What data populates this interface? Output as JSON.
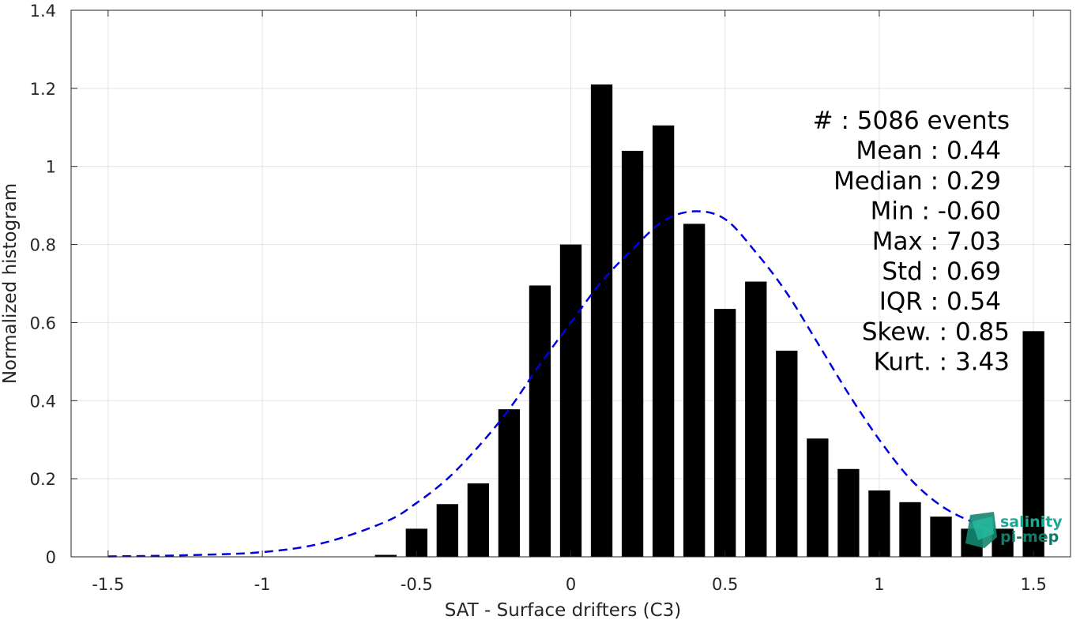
{
  "chart_data": {
    "type": "bar",
    "xlabel": "SAT - Surface drifters (C3)",
    "ylabel": "Normalized histogram",
    "xlim": [
      -1.62,
      1.62
    ],
    "ylim": [
      0,
      1.4
    ],
    "grid": true,
    "xticks": [
      -1.5,
      -1,
      -0.5,
      0,
      0.5,
      1,
      1.5
    ],
    "xtick_labels": [
      "-1.5",
      "-1",
      "-0.5",
      "0",
      "0.5",
      "1",
      "1.5"
    ],
    "yticks": [
      0,
      0.2,
      0.4,
      0.6,
      0.8,
      1,
      1.2,
      1.4
    ],
    "ytick_labels": [
      "0",
      "0.2",
      "0.4",
      "0.6",
      "0.8",
      "1",
      "1.2",
      "1.4"
    ],
    "bar_width": 0.07,
    "bars": {
      "x": [
        -0.6,
        -0.5,
        -0.4,
        -0.3,
        -0.2,
        -0.1,
        0.0,
        0.1,
        0.2,
        0.3,
        0.4,
        0.5,
        0.6,
        0.7,
        0.8,
        0.9,
        1.0,
        1.1,
        1.2,
        1.3,
        1.4,
        1.5
      ],
      "values": [
        0.005,
        0.072,
        0.135,
        0.188,
        0.378,
        0.695,
        0.8,
        1.21,
        1.04,
        1.105,
        0.853,
        0.635,
        0.705,
        0.528,
        0.303,
        0.225,
        0.17,
        0.14,
        0.103,
        0.072,
        0.072,
        0.578
      ],
      "color": "#000000"
    },
    "fit_curve": {
      "style": "dashed",
      "color": "#0000e0",
      "x": [
        -1.5,
        -1.25,
        -1.0,
        -0.8,
        -0.6,
        -0.5,
        -0.4,
        -0.3,
        -0.2,
        -0.1,
        0.0,
        0.1,
        0.2,
        0.3,
        0.4,
        0.5,
        0.6,
        0.7,
        0.8,
        0.9,
        1.0,
        1.1,
        1.2,
        1.3,
        1.36
      ],
      "values": [
        0.001,
        0.004,
        0.012,
        0.036,
        0.09,
        0.138,
        0.2,
        0.282,
        0.378,
        0.493,
        0.6,
        0.705,
        0.788,
        0.86,
        0.885,
        0.865,
        0.78,
        0.676,
        0.548,
        0.418,
        0.3,
        0.2,
        0.131,
        0.09,
        0.078
      ]
    },
    "annotations": [
      "#  : 5086 events",
      "Mean : 0.44",
      "Median : 0.29",
      "Min : -0.60",
      "Max : 7.03",
      "Std : 0.69",
      "IQR : 0.54",
      "Skew. : 0.85",
      "Kurt. : 3.43"
    ]
  },
  "logo": {
    "line1": "salinity",
    "line2": "pi-mep",
    "color": "#1aaa94"
  }
}
